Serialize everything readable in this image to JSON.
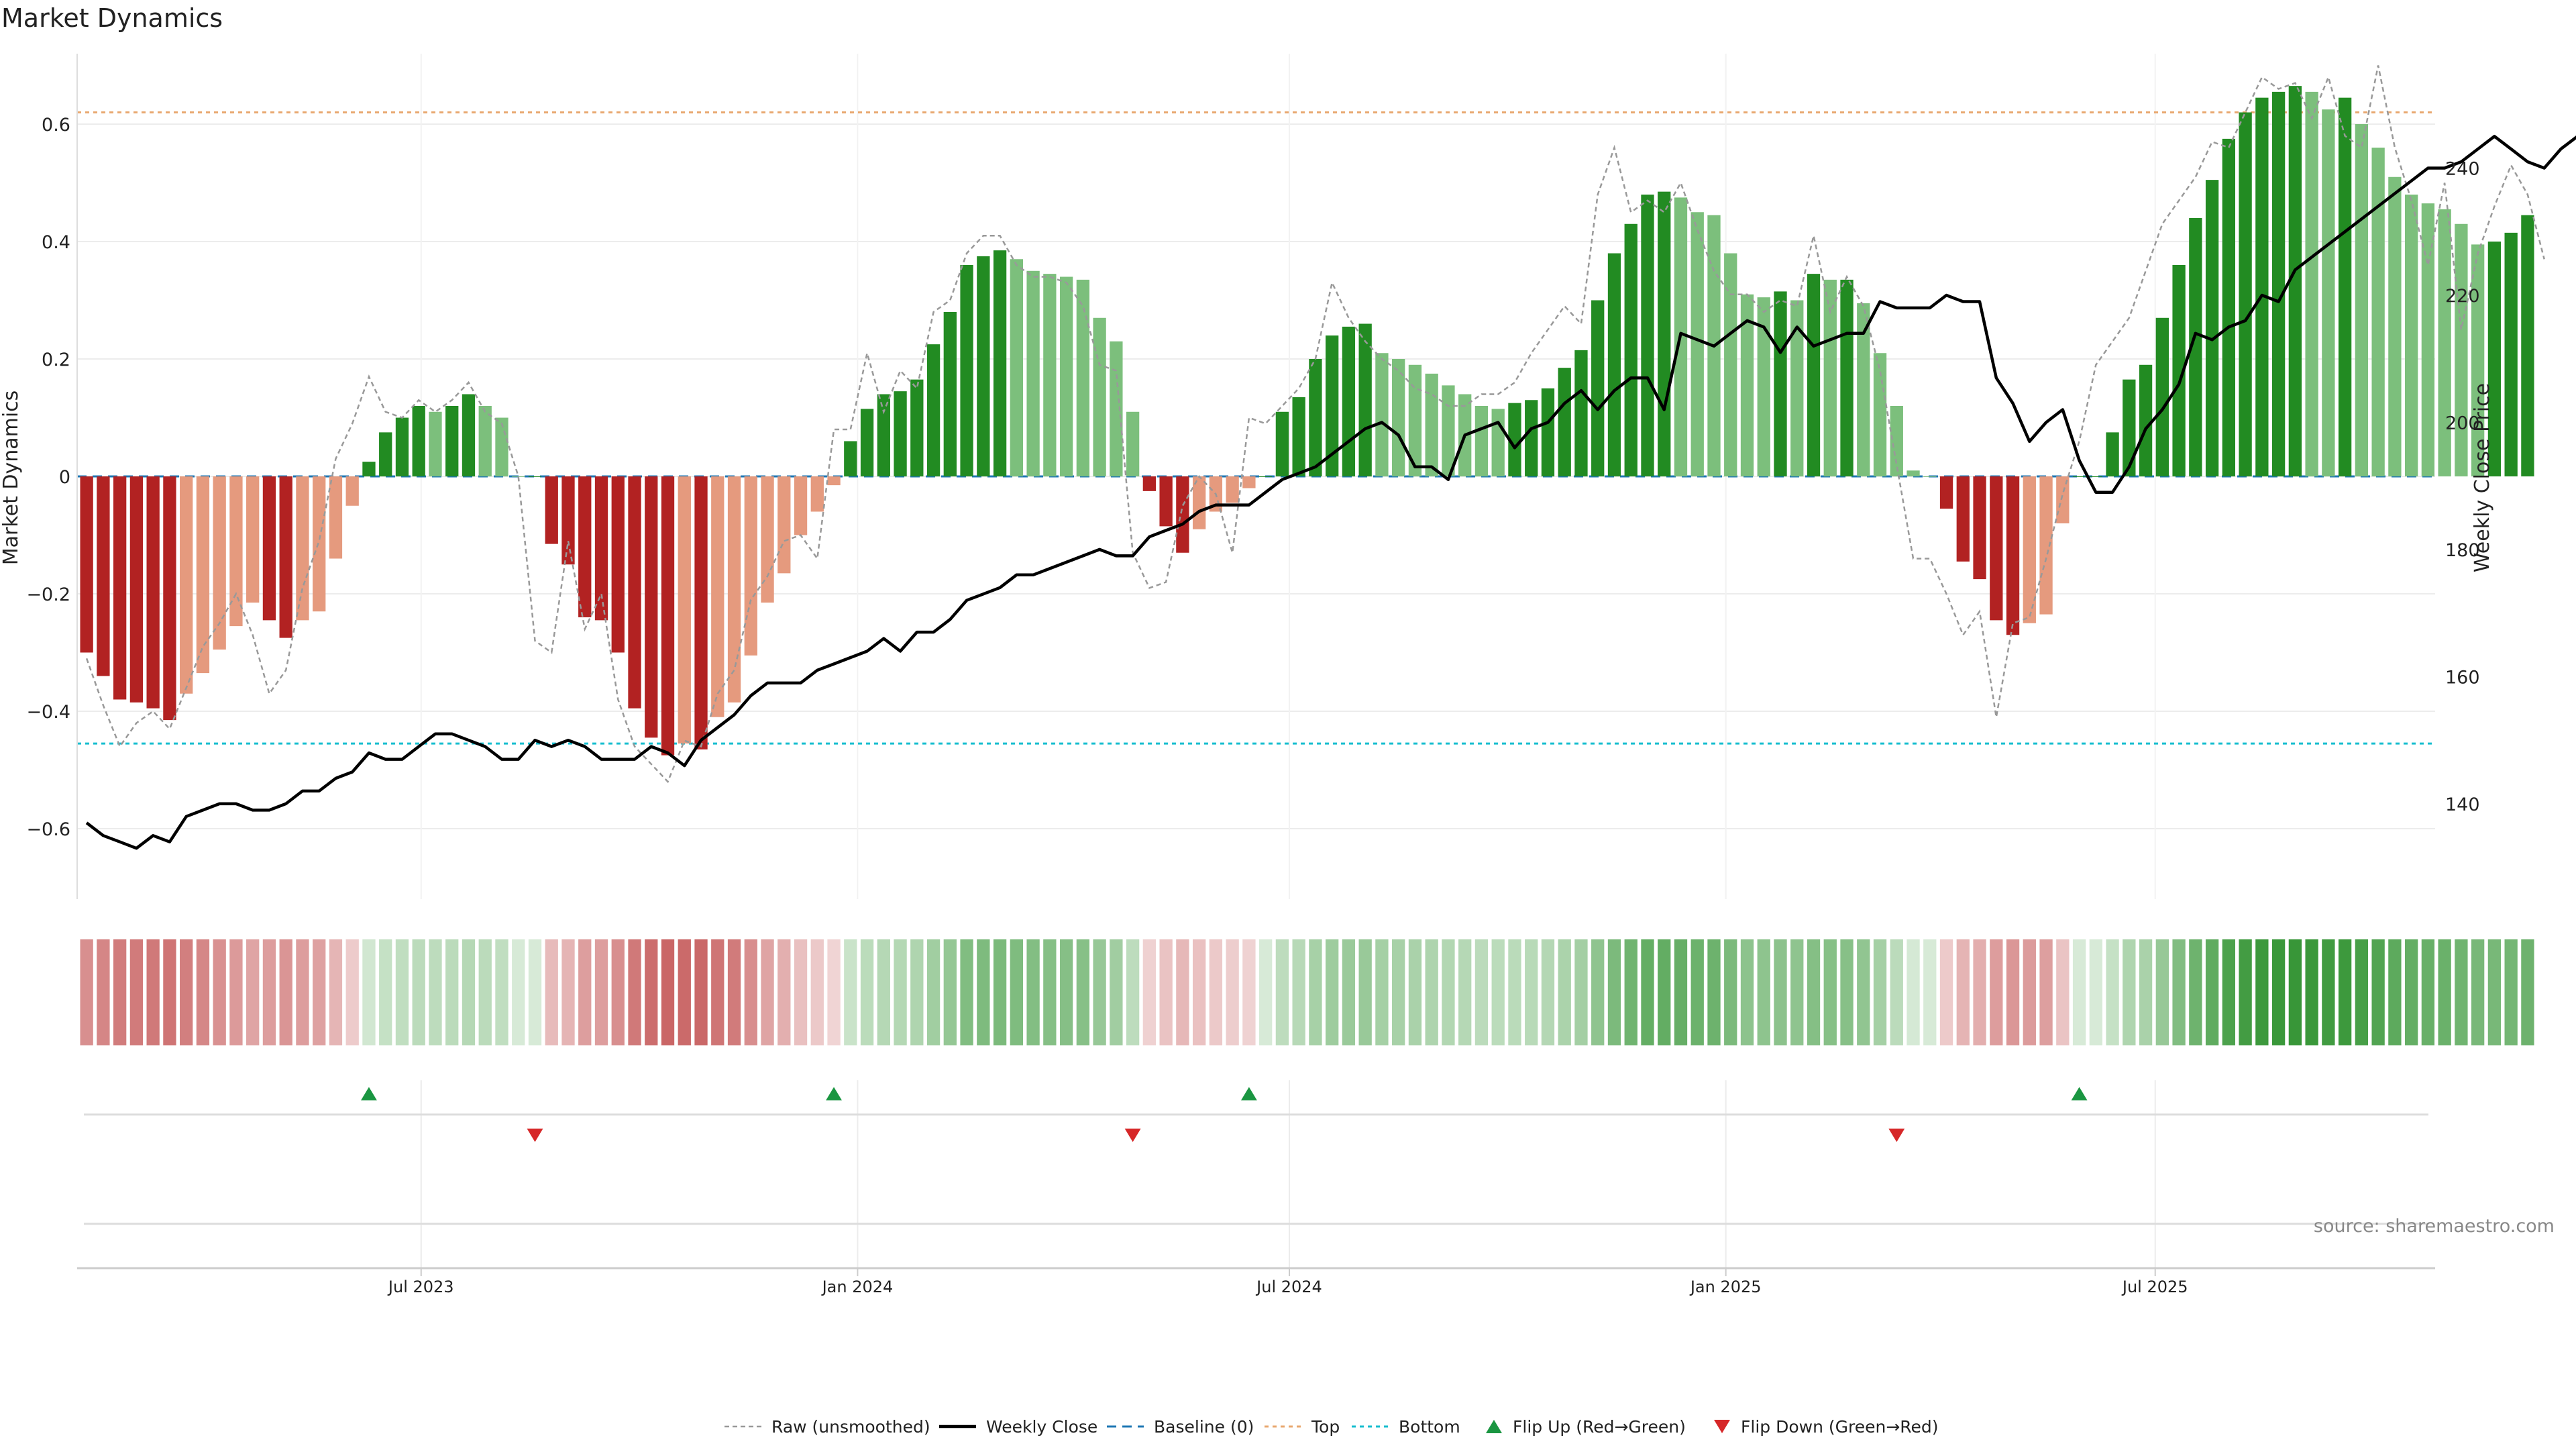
{
  "title": "Market Dynamics",
  "source": "source: sharemaestro.com",
  "colors": {
    "strong_green": "#228B22",
    "weak_green": "#7CBF7C",
    "strong_red": "#B22222",
    "weak_red": "#E59A7E",
    "raw_line": "#999999",
    "price_line": "#000000",
    "baseline": "#1F77B4",
    "top_line": "#E8A870",
    "bottom_line": "#17BECF",
    "flip_up": "#1A9641",
    "flip_down": "#D62728"
  },
  "chart_data": {
    "type": "bar",
    "title": "Market Dynamics",
    "ylabel": "Market Dynamics",
    "y2label": "Weekly Close Price",
    "ylim": [
      -0.72,
      0.72
    ],
    "y2lim": [
      125,
      258
    ],
    "yticks": [
      -0.6,
      -0.4,
      -0.2,
      0,
      0.2,
      0.4,
      0.6
    ],
    "ytick_labels": [
      "−0.6",
      "−0.4",
      "−0.2",
      "0",
      "0.2",
      "0.4",
      "0.6"
    ],
    "y2ticks": [
      140,
      160,
      180,
      200,
      220,
      240
    ],
    "y2tick_labels": [
      "140",
      "160",
      "180",
      "200",
      "220",
      "240"
    ],
    "xlim": [
      "2023-02-06",
      "2025-10-27"
    ],
    "xticks": [
      "2023-07-01",
      "2024-01-01",
      "2024-07-01",
      "2025-01-01",
      "2025-07-01"
    ],
    "xtick_labels": [
      "Jul 2023",
      "Jan 2024",
      "Jul 2024",
      "Jan 2025",
      "Jul 2025"
    ],
    "top_level": 0.62,
    "bottom_level": -0.455,
    "baseline": 0,
    "grid": true,
    "legend_position": "bottom-center",
    "start_date": "2023-02-10",
    "values": [
      -0.3,
      -0.34,
      -0.38,
      -0.385,
      -0.395,
      -0.415,
      -0.37,
      -0.335,
      -0.295,
      -0.255,
      -0.215,
      -0.245,
      -0.275,
      -0.245,
      -0.23,
      -0.14,
      -0.05,
      0.025,
      0.075,
      0.1,
      0.12,
      0.11,
      0.12,
      0.14,
      0.12,
      0.1,
      0,
      0,
      -0.115,
      -0.15,
      -0.24,
      -0.245,
      -0.3,
      -0.395,
      -0.445,
      -0.475,
      -0.455,
      -0.465,
      -0.41,
      -0.385,
      -0.305,
      -0.215,
      -0.165,
      -0.1,
      -0.06,
      -0.015,
      0.06,
      0.115,
      0.14,
      0.145,
      0.165,
      0.225,
      0.28,
      0.36,
      0.375,
      0.385,
      0.37,
      0.35,
      0.345,
      0.34,
      0.335,
      0.27,
      0.23,
      0.11,
      -0.025,
      -0.085,
      -0.13,
      -0.09,
      -0.06,
      -0.045,
      -0.02,
      0,
      0.11,
      0.135,
      0.2,
      0.24,
      0.255,
      0.26,
      0.21,
      0.2,
      0.19,
      0.175,
      0.155,
      0.14,
      0.12,
      0.115,
      0.125,
      0.13,
      0.15,
      0.185,
      0.215,
      0.3,
      0.38,
      0.43,
      0.48,
      0.485,
      0.475,
      0.45,
      0.445,
      0.38,
      0.31,
      0.305,
      0.315,
      0.3,
      0.345,
      0.335,
      0.335,
      0.295,
      0.21,
      0.12,
      0.01,
      0,
      -0.055,
      -0.145,
      -0.175,
      -0.245,
      -0.27,
      -0.25,
      -0.235,
      -0.08,
      0,
      0,
      0.075,
      0.165,
      0.19,
      0.27,
      0.36,
      0.44,
      0.505,
      0.575,
      0.62,
      0.645,
      0.655,
      0.665,
      0.655,
      0.625,
      0.645,
      0.6,
      0.56,
      0.51,
      0.48,
      0.465,
      0.455,
      0.43,
      0.395,
      0.4,
      0.415,
      0.445
    ],
    "flip_up_dates": [
      "2023-06-09",
      "2023-12-22",
      "2024-06-14",
      "2025-05-30"
    ],
    "flip_down_dates": [
      "2023-08-18",
      "2024-04-26",
      "2025-03-14"
    ],
    "series": [
      {
        "name": "Raw (unsmoothed)",
        "axis": "left",
        "style": "dashed",
        "values": [
          -0.31,
          -0.39,
          -0.46,
          -0.42,
          -0.4,
          -0.43,
          -0.36,
          -0.29,
          -0.25,
          -0.2,
          -0.27,
          -0.37,
          -0.33,
          -0.19,
          -0.11,
          0.03,
          0.09,
          0.17,
          0.11,
          0.1,
          0.13,
          0.11,
          0.13,
          0.16,
          0.11,
          0.09,
          0,
          -0.28,
          -0.3,
          -0.11,
          -0.26,
          -0.2,
          -0.38,
          -0.46,
          -0.49,
          -0.52,
          -0.45,
          -0.46,
          -0.37,
          -0.33,
          -0.21,
          -0.17,
          -0.11,
          -0.1,
          -0.14,
          0.08,
          0.08,
          0.21,
          0.11,
          0.18,
          0.15,
          0.28,
          0.3,
          0.38,
          0.41,
          0.41,
          0.36,
          0.34,
          0.34,
          0.33,
          0.29,
          0.19,
          0.18,
          -0.13,
          -0.19,
          -0.18,
          -0.05,
          0,
          -0.03,
          -0.13,
          0.1,
          0.09,
          0.12,
          0.15,
          0.2,
          0.33,
          0.27,
          0.23,
          0.2,
          0.18,
          0.15,
          0.14,
          0.12,
          0.12,
          0.14,
          0.14,
          0.16,
          0.21,
          0.25,
          0.29,
          0.26,
          0.48,
          0.56,
          0.45,
          0.47,
          0.45,
          0.5,
          0.42,
          0.35,
          0.31,
          0.31,
          0.28,
          0.3,
          0.29,
          0.41,
          0.28,
          0.34,
          0.29,
          0.18,
          0.02,
          -0.14,
          -0.14,
          -0.2,
          -0.27,
          -0.23,
          -0.41,
          -0.25,
          -0.24,
          -0.14,
          -0.03,
          0.06,
          0.19,
          0.23,
          0.27,
          0.35,
          0.43,
          0.47,
          0.51,
          0.57,
          0.56,
          0.62,
          0.68,
          0.66,
          0.67,
          0.61,
          0.68,
          0.58,
          0.56,
          0.7,
          0.56,
          0.47,
          0.36,
          0.5,
          0.25,
          0.38,
          0.46,
          0.53,
          0.48,
          0.37
        ]
      },
      {
        "name": "Weekly Close",
        "axis": "right",
        "style": "solid",
        "values": [
          137,
          135,
          134,
          133,
          135,
          134,
          138,
          139,
          140,
          140,
          139,
          139,
          140,
          142,
          142,
          144,
          145,
          148,
          147,
          147,
          149,
          151,
          151,
          150,
          149,
          147,
          147,
          150,
          149,
          150,
          149,
          147,
          147,
          147,
          149,
          148,
          146,
          150,
          152,
          154,
          157,
          159,
          159,
          159,
          161,
          162,
          163,
          164,
          166,
          164,
          167,
          167,
          169,
          172,
          173,
          174,
          176,
          176,
          177,
          178,
          179,
          180,
          179,
          179,
          182,
          183,
          184,
          186,
          187,
          187,
          187,
          189,
          191,
          192,
          193,
          195,
          197,
          199,
          200,
          198,
          193,
          193,
          191,
          198,
          199,
          200,
          196,
          199,
          200,
          203,
          205,
          202,
          205,
          207,
          207,
          202,
          214,
          213,
          212,
          214,
          216,
          215,
          211,
          215,
          212,
          213,
          214,
          214,
          219,
          218,
          218,
          218,
          220,
          219,
          219,
          207,
          203,
          197,
          200,
          202,
          194,
          189,
          189,
          193,
          199,
          202,
          206,
          214,
          213,
          215,
          216,
          220,
          219,
          224,
          226,
          228,
          230,
          232,
          234,
          236,
          238,
          240,
          240,
          241,
          243,
          245,
          243,
          241,
          240,
          243,
          245,
          248,
          250,
          247
        ]
      }
    ]
  },
  "legend": {
    "raw": "Raw (unsmoothed)",
    "close": "Weekly Close",
    "baseline": "Baseline (0)",
    "top": "Top",
    "bottom": "Bottom",
    "flip_up": "Flip Up (Red→Green)",
    "flip_down": "Flip Down (Green→Red)"
  }
}
